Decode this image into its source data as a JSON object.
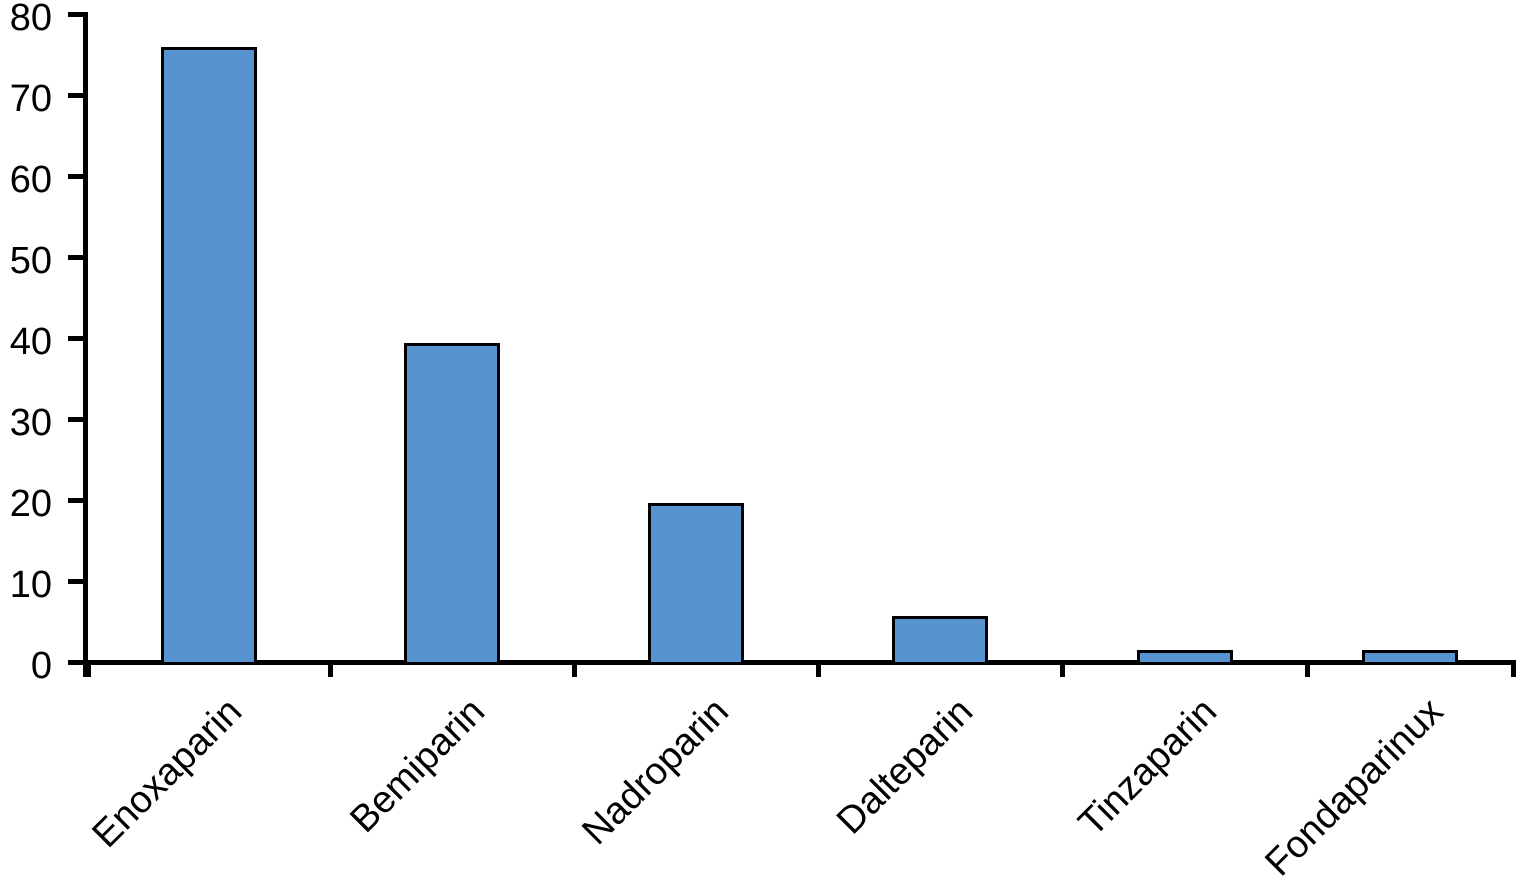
{
  "chart_data": {
    "type": "bar",
    "title": "",
    "xlabel": "",
    "ylabel": "",
    "categories": [
      "Enoxaparin",
      "Bemiparin",
      "Nadroparin",
      "Dalteparin",
      "Tinzaparin",
      "Fondaparinux"
    ],
    "values": [
      76,
      39.5,
      19.7,
      5.7,
      1.5,
      1.5
    ],
    "ylim": [
      0,
      80
    ],
    "yticks": [
      0,
      10,
      20,
      30,
      40,
      50,
      60,
      70,
      80
    ],
    "grid": false,
    "legend_position": "none",
    "x_label_rotation_deg": 45,
    "colors": {
      "bar_fill": "#5693CF",
      "bar_border": "#000000",
      "axis": "#000000",
      "text": "#000000",
      "background": "#FFFFFF"
    }
  }
}
